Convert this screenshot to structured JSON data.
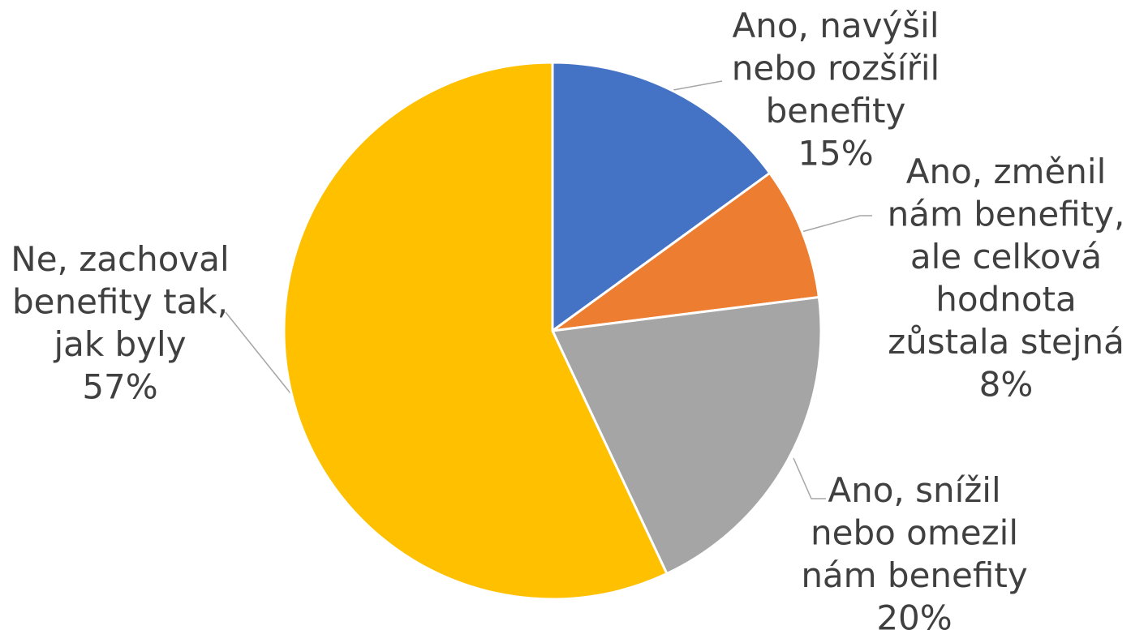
{
  "chart_data": {
    "type": "pie",
    "title": "",
    "slices": [
      {
        "label_lines": [
          "Ano, navýšil",
          "nebo rozšířil",
          "benefity"
        ],
        "value": 15,
        "value_label": "15%",
        "color": "#4472C4"
      },
      {
        "label_lines": [
          "Ano, změnil",
          "nám benefity,",
          "ale celková",
          "hodnota",
          "zůstala stejná"
        ],
        "value": 8,
        "value_label": "8%",
        "color": "#ED7D31"
      },
      {
        "label_lines": [
          "Ano, snížil",
          "nebo omezil",
          "nám benefity"
        ],
        "value": 20,
        "value_label": "20%",
        "color": "#A5A5A5"
      },
      {
        "label_lines": [
          "Ne, zachoval",
          "benefity tak,",
          "jak byly"
        ],
        "value": 57,
        "value_label": "57%",
        "color": "#FFC000"
      }
    ],
    "start_angle": "12 o'clock",
    "direction": "clockwise",
    "legend": "none"
  }
}
